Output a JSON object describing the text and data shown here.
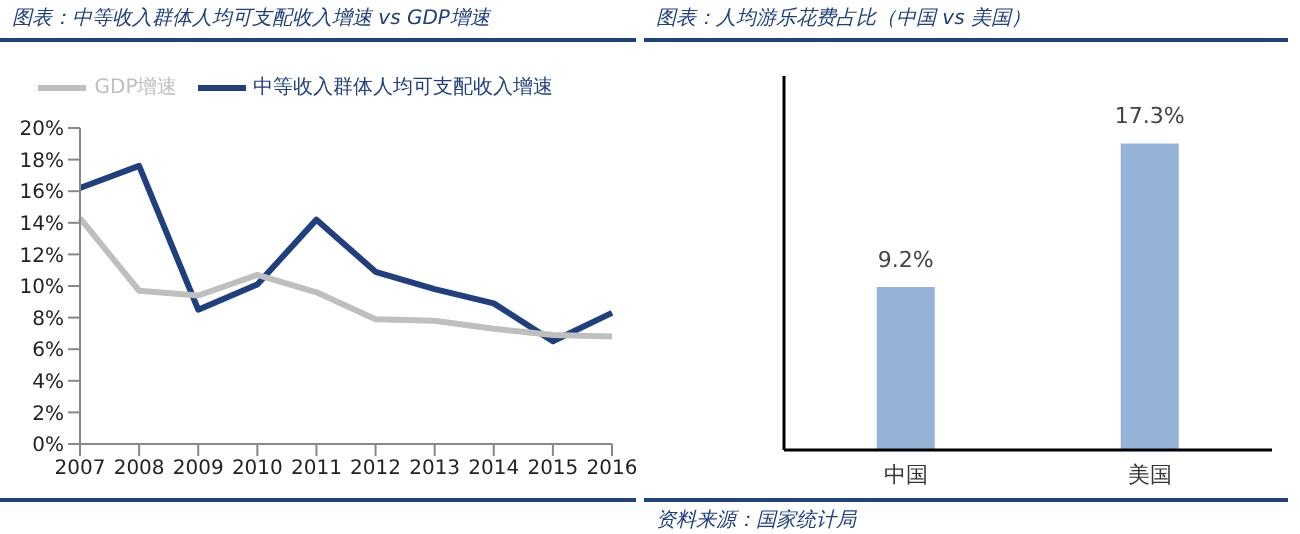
{
  "chart_data": [
    {
      "type": "line",
      "title": "图表：中等收入群体人均可支配收入增速 vs GDP增速",
      "categories": [
        "2007",
        "2008",
        "2009",
        "2010",
        "2011",
        "2012",
        "2013",
        "2014",
        "2015",
        "2016"
      ],
      "series": [
        {
          "name": "中等收入群体人均可支配收入增速",
          "color": "#1f3f7f",
          "values": [
            16.2,
            17.6,
            8.5,
            10.1,
            14.2,
            10.9,
            9.8,
            8.9,
            6.5,
            8.3
          ]
        },
        {
          "name": "GDP增速",
          "color": "#bfbfbf",
          "values": [
            14.3,
            9.7,
            9.4,
            10.7,
            9.6,
            7.9,
            7.8,
            7.3,
            6.9,
            6.8
          ]
        }
      ],
      "ylim": [
        0,
        20
      ],
      "yticks": [
        {
          "value": 0,
          "label": "0%"
        },
        {
          "value": 2,
          "label": "2%"
        },
        {
          "value": 4,
          "label": "4%"
        },
        {
          "value": 6,
          "label": "6%"
        },
        {
          "value": 8,
          "label": "8%"
        },
        {
          "value": 10,
          "label": "10%"
        },
        {
          "value": 12,
          "label": "12%"
        },
        {
          "value": 14,
          "label": "14%"
        },
        {
          "value": 16,
          "label": "16%"
        },
        {
          "value": 18,
          "label": "18%"
        },
        {
          "value": 20,
          "label": "20%"
        }
      ],
      "legend": "top",
      "marker": "none",
      "grid": false
    },
    {
      "type": "bar",
      "title": "图表：人均游乐花费占比（中国 vs 美国）",
      "categories": [
        "中国",
        "美国"
      ],
      "values": [
        9.2,
        17.3
      ],
      "value_labels": [
        "9.2%",
        "17.3%"
      ],
      "color": "#95b3d7",
      "tick_labels": "x",
      "grid": false,
      "annotations": [
        "资料来源：国家统计局"
      ]
    }
  ]
}
